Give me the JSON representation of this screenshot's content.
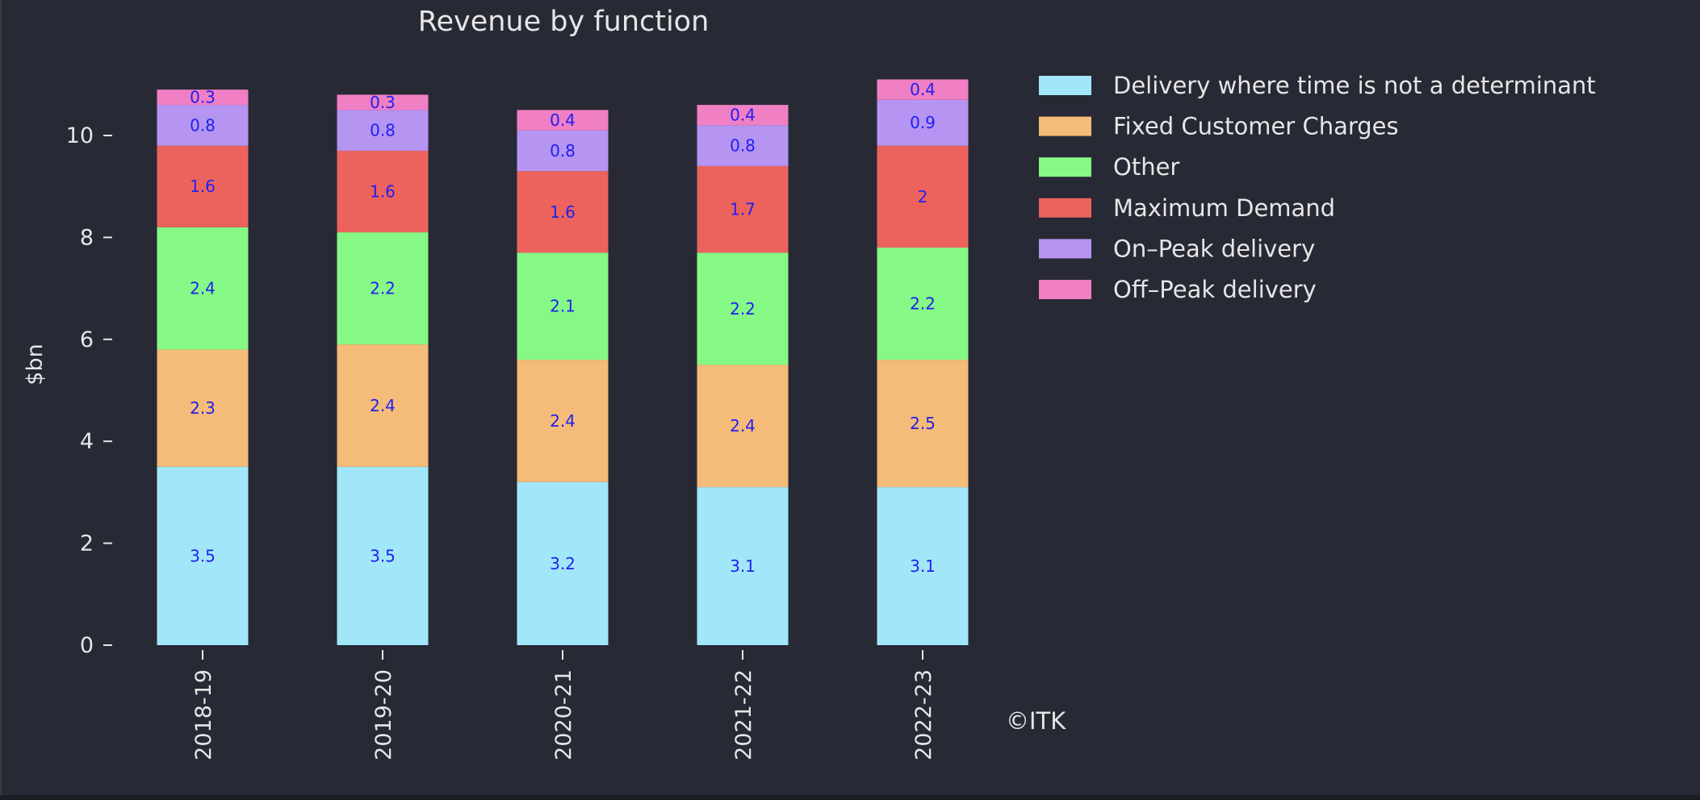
{
  "chart_data": {
    "type": "bar",
    "stacked": true,
    "title": "Revenue by function",
    "xlabel": "",
    "ylabel": "$bn",
    "ylim": [
      0,
      11.5
    ],
    "yticks": [
      0,
      2,
      4,
      6,
      8,
      10
    ],
    "grid": false,
    "legend_placement": "outside-top-right",
    "categories": [
      "2018-19",
      "2019-20",
      "2020-21",
      "2021-22",
      "2022-23"
    ],
    "series": [
      {
        "name": "Delivery  where time  is not a determinant",
        "color": "#a1e7f9",
        "values": [
          3.5,
          3.5,
          3.2,
          3.1,
          3.1
        ]
      },
      {
        "name": " Fixed Customer Charges",
        "color": "#f5bb78",
        "values": [
          2.3,
          2.4,
          2.4,
          2.4,
          2.5
        ]
      },
      {
        "name": "Other",
        "color": "#86f886",
        "values": [
          2.4,
          2.2,
          2.1,
          2.2,
          2.2
        ]
      },
      {
        "name": "Maximum Demand",
        "color": "#ec635d",
        "values": [
          1.6,
          1.6,
          1.6,
          1.7,
          2
        ]
      },
      {
        "name": " On–Peak  delivery",
        "color": "#b594f2",
        "values": [
          0.8,
          0.8,
          0.8,
          0.8,
          0.9
        ]
      },
      {
        "name": " Off–Peak delivery",
        "color": "#f07fc4",
        "values": [
          0.3,
          0.3,
          0.4,
          0.4,
          0.4
        ]
      }
    ],
    "data_label_color": "#1f1ff0",
    "annotation": "©ITK"
  },
  "colors": {
    "background": "#272934",
    "text": "#e6e6e6"
  }
}
